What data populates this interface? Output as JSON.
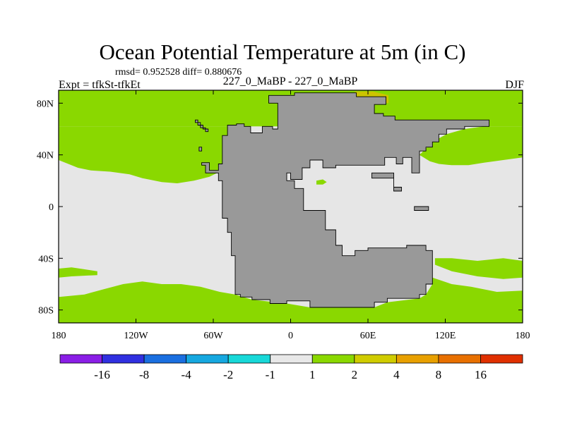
{
  "title": "Ocean Potential Temperature at 5m (in C)",
  "stats": "rmsd= 0.952528 diff= 0.880676",
  "left_label": "Expt = tfkSt-tfkEt",
  "center_label": "227_0_MaBP - 227_0_MaBP",
  "right_label": "DJF",
  "chart_data": {
    "type": "heatmap",
    "title": "Ocean Potential Temperature at 5m (in C)",
    "xlabel": "",
    "ylabel": "",
    "xlim": [
      -180,
      180
    ],
    "ylim": [
      -90,
      90
    ],
    "x_ticks": [
      {
        "value": -180,
        "label": "180"
      },
      {
        "value": -120,
        "label": "120W"
      },
      {
        "value": -60,
        "label": "60W"
      },
      {
        "value": 0,
        "label": "0"
      },
      {
        "value": 60,
        "label": "60E"
      },
      {
        "value": 120,
        "label": "120E"
      },
      {
        "value": 180,
        "label": "180"
      }
    ],
    "y_ticks": [
      {
        "value": 80,
        "label": "80N"
      },
      {
        "value": 40,
        "label": "40N"
      },
      {
        "value": 0,
        "label": "0"
      },
      {
        "value": -40,
        "label": "40S"
      },
      {
        "value": -80,
        "label": "80S"
      }
    ],
    "colorbar": {
      "levels": [
        "-16",
        "-8",
        "-4",
        "-2",
        "-1",
        "1",
        "2",
        "4",
        "8",
        "16"
      ],
      "colors": [
        "#8a1ee6",
        "#3030e0",
        "#1a6fe0",
        "#16a8e0",
        "#18d8d8",
        "#e8e8e8",
        "#8ad800",
        "#d0cc00",
        "#e8a000",
        "#e87000",
        "#e03000"
      ]
    },
    "fill_colors": {
      "neutral_-1_to_1": "#e6e6e6",
      "warm_1_to_2": "#8ad800",
      "warm_2_to_4": "#ccc400",
      "land_mask": "#999999"
    },
    "regions": [
      {
        "name": "land-supercontinent",
        "fill": "land_mask",
        "polygon": [
          [
            -49,
            63
          ],
          [
            -42,
            63
          ],
          [
            -42,
            64
          ],
          [
            -36,
            64
          ],
          [
            -36,
            62
          ],
          [
            -31,
            62
          ],
          [
            -31,
            57
          ],
          [
            -22,
            57
          ],
          [
            -22,
            62
          ],
          [
            -14,
            62
          ],
          [
            -14,
            60
          ],
          [
            -10,
            60
          ],
          [
            -10,
            80
          ],
          [
            -17,
            80
          ],
          [
            -17,
            86
          ],
          [
            3,
            86
          ],
          [
            3,
            88
          ],
          [
            51,
            88
          ],
          [
            51,
            85
          ],
          [
            74,
            85
          ],
          [
            74,
            79
          ],
          [
            65,
            79
          ],
          [
            65,
            72
          ],
          [
            72,
            72
          ],
          [
            72,
            70
          ],
          [
            81,
            70
          ],
          [
            81,
            67
          ],
          [
            154,
            67
          ],
          [
            154,
            62
          ],
          [
            135,
            62
          ],
          [
            135,
            60
          ],
          [
            121,
            60
          ],
          [
            121,
            56
          ],
          [
            115,
            56
          ],
          [
            115,
            50
          ],
          [
            110,
            50
          ],
          [
            110,
            46
          ],
          [
            105,
            46
          ],
          [
            105,
            43
          ],
          [
            100,
            43
          ],
          [
            100,
            26
          ],
          [
            94,
            26
          ],
          [
            94,
            38
          ],
          [
            87,
            38
          ],
          [
            87,
            33
          ],
          [
            82,
            33
          ],
          [
            82,
            38
          ],
          [
            73,
            38
          ],
          [
            73,
            32
          ],
          [
            35,
            32
          ],
          [
            35,
            30
          ],
          [
            25,
            30
          ],
          [
            25,
            36
          ],
          [
            15,
            36
          ],
          [
            15,
            30
          ],
          [
            9,
            30
          ],
          [
            9,
            21
          ],
          [
            0,
            21
          ],
          [
            0,
            26
          ],
          [
            -3,
            26
          ],
          [
            -3,
            20
          ],
          [
            3,
            20
          ],
          [
            3,
            14
          ],
          [
            10,
            14
          ],
          [
            10,
            -3
          ],
          [
            27,
            -3
          ],
          [
            27,
            -18
          ],
          [
            35,
            -18
          ],
          [
            35,
            -30
          ],
          [
            40,
            -30
          ],
          [
            40,
            -38
          ],
          [
            50,
            -38
          ],
          [
            50,
            -34
          ],
          [
            60,
            -34
          ],
          [
            60,
            -32
          ],
          [
            90,
            -32
          ],
          [
            90,
            -30
          ],
          [
            105,
            -30
          ],
          [
            105,
            -34
          ],
          [
            110,
            -34
          ],
          [
            110,
            -60
          ],
          [
            105,
            -60
          ],
          [
            105,
            -68
          ],
          [
            100,
            -68
          ],
          [
            100,
            -71
          ],
          [
            75,
            -71
          ],
          [
            75,
            -74
          ],
          [
            65,
            -74
          ],
          [
            65,
            -78
          ],
          [
            15,
            -78
          ],
          [
            15,
            -73
          ],
          [
            -3,
            -73
          ],
          [
            -3,
            -75
          ],
          [
            -16,
            -75
          ],
          [
            -16,
            -72
          ],
          [
            -30,
            -72
          ],
          [
            -30,
            -70
          ],
          [
            -39,
            -70
          ],
          [
            -39,
            -68
          ],
          [
            -43,
            -68
          ],
          [
            -43,
            -38
          ],
          [
            -46,
            -38
          ],
          [
            -46,
            -20
          ],
          [
            -49,
            -20
          ],
          [
            -49,
            -9
          ],
          [
            -53,
            -9
          ],
          [
            -53,
            20
          ],
          [
            -56,
            20
          ],
          [
            -56,
            26
          ],
          [
            -66,
            26
          ],
          [
            -66,
            32
          ],
          [
            -69,
            32
          ],
          [
            -69,
            34
          ],
          [
            -63,
            34
          ],
          [
            -63,
            28
          ],
          [
            -56,
            28
          ],
          [
            -56,
            33
          ],
          [
            -53,
            33
          ],
          [
            -53,
            55
          ],
          [
            -49,
            55
          ]
        ]
      },
      {
        "name": "land-island-north",
        "fill": "land_mask",
        "polygon": [
          [
            -74,
            67
          ],
          [
            -72,
            67
          ],
          [
            -72,
            63
          ],
          [
            -68,
            63
          ],
          [
            -68,
            60
          ],
          [
            -64,
            60
          ],
          [
            -64,
            58
          ],
          [
            -66,
            58
          ],
          [
            -66,
            61
          ],
          [
            -70,
            61
          ],
          [
            -70,
            65
          ],
          [
            -74,
            65
          ]
        ]
      },
      {
        "name": "land-island-west",
        "fill": "land_mask",
        "polygon": [
          [
            -71,
            46
          ],
          [
            -69,
            46
          ],
          [
            -69,
            43
          ],
          [
            -71,
            43
          ]
        ]
      },
      {
        "name": "land-island-east",
        "fill": "land_mask",
        "polygon": [
          [
            96,
            0
          ],
          [
            107,
            0
          ],
          [
            107,
            -3
          ],
          [
            96,
            -3
          ]
        ]
      },
      {
        "name": "land-inland-ridge",
        "fill": "land_mask",
        "polygon": [
          [
            63,
            26
          ],
          [
            80,
            26
          ],
          [
            80,
            15
          ],
          [
            86,
            15
          ],
          [
            86,
            12
          ],
          [
            80,
            12
          ],
          [
            80,
            22
          ],
          [
            63,
            22
          ]
        ]
      },
      {
        "name": "ocean-arctic-band",
        "fill": "warm_1_to_2",
        "polygon": [
          [
            -180,
            90
          ],
          [
            180,
            90
          ],
          [
            180,
            62
          ],
          [
            -180,
            62
          ]
        ]
      },
      {
        "name": "ocean-north-pacific-band",
        "fill": "warm_1_to_2",
        "polygon": [
          [
            -180,
            62
          ],
          [
            -49,
            62
          ],
          [
            -49,
            30
          ],
          [
            -55,
            27
          ],
          [
            -63,
            23
          ],
          [
            -75,
            20
          ],
          [
            -88,
            18
          ],
          [
            -100,
            19
          ],
          [
            -115,
            22
          ],
          [
            -125,
            25
          ],
          [
            -140,
            27
          ],
          [
            -155,
            28
          ],
          [
            -165,
            30
          ],
          [
            -180,
            36
          ]
        ]
      },
      {
        "name": "ocean-northeast-band",
        "fill": "warm_1_to_2",
        "polygon": [
          [
            150,
            62
          ],
          [
            180,
            62
          ],
          [
            180,
            38
          ],
          [
            165,
            36
          ],
          [
            150,
            34
          ],
          [
            138,
            32
          ],
          [
            125,
            32
          ],
          [
            115,
            33
          ],
          [
            108,
            35
          ],
          [
            100,
            40
          ],
          [
            110,
            50
          ],
          [
            121,
            56
          ],
          [
            135,
            60
          ]
        ]
      },
      {
        "name": "ocean-south-band",
        "fill": "warm_1_to_2",
        "polygon": [
          [
            -180,
            -90
          ],
          [
            180,
            -90
          ],
          [
            180,
            -65
          ],
          [
            160,
            -66
          ],
          [
            140,
            -62
          ],
          [
            125,
            -60
          ],
          [
            110,
            -55
          ],
          [
            110,
            -60
          ],
          [
            105,
            -68
          ],
          [
            100,
            -71
          ],
          [
            75,
            -74
          ],
          [
            65,
            -78
          ],
          [
            15,
            -78
          ],
          [
            -3,
            -75
          ],
          [
            -30,
            -72
          ],
          [
            -43,
            -68
          ],
          [
            -55,
            -66
          ],
          [
            -70,
            -62
          ],
          [
            -85,
            -60
          ],
          [
            -100,
            -60
          ],
          [
            -115,
            -58
          ],
          [
            -130,
            -60
          ],
          [
            -145,
            -64
          ],
          [
            -160,
            -68
          ],
          [
            -180,
            -70
          ]
        ]
      },
      {
        "name": "ocean-southwest-strip",
        "fill": "warm_1_to_2",
        "polygon": [
          [
            -180,
            -48
          ],
          [
            -170,
            -47
          ],
          [
            -150,
            -50
          ],
          [
            -150,
            -53
          ],
          [
            -170,
            -54
          ],
          [
            -180,
            -55
          ]
        ]
      },
      {
        "name": "ocean-southeast-strip",
        "fill": "warm_1_to_2",
        "polygon": [
          [
            112,
            -40
          ],
          [
            125,
            -40
          ],
          [
            145,
            -42
          ],
          [
            165,
            -40
          ],
          [
            180,
            -42
          ],
          [
            180,
            -55
          ],
          [
            165,
            -56
          ],
          [
            145,
            -54
          ],
          [
            125,
            -50
          ],
          [
            112,
            -45
          ]
        ]
      },
      {
        "name": "ocean-small-patch",
        "fill": "warm_1_to_2",
        "polygon": [
          [
            20,
            20
          ],
          [
            25,
            21
          ],
          [
            28,
            19
          ],
          [
            25,
            17
          ],
          [
            20,
            17
          ]
        ]
      },
      {
        "name": "ocean-arctic-warm-patch",
        "fill": "warm_2_to_4",
        "polygon": [
          [
            50,
            89
          ],
          [
            64,
            89
          ],
          [
            76,
            86
          ],
          [
            76,
            80
          ],
          [
            64,
            80
          ],
          [
            56,
            82
          ],
          [
            50,
            84
          ]
        ]
      }
    ]
  }
}
